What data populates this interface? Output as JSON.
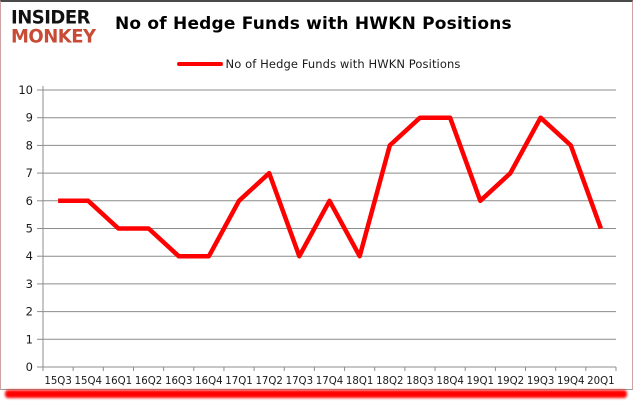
{
  "logo": {
    "line1": "INSIDER",
    "line2": "MONKEY",
    "line1_color": "#111111",
    "line2_color": "#c74b35"
  },
  "header": {
    "title": "No of Hedge Funds with HWKN Positions"
  },
  "legend": {
    "label": "No of Hedge Funds with HWKN Positions",
    "swatch_color": "#ff0000"
  },
  "chart_data": {
    "type": "line",
    "title": "No of Hedge Funds with HWKN Positions",
    "categories": [
      "15Q3",
      "15Q4",
      "16Q1",
      "16Q2",
      "16Q3",
      "16Q4",
      "17Q1",
      "17Q2",
      "17Q3",
      "17Q4",
      "18Q1",
      "18Q2",
      "18Q3",
      "18Q4",
      "19Q1",
      "19Q2",
      "19Q3",
      "19Q4",
      "20Q1"
    ],
    "series": [
      {
        "name": "No of Hedge Funds with HWKN Positions",
        "color": "#ff0000",
        "values": [
          6,
          6,
          5,
          5,
          4,
          4,
          6,
          7,
          4,
          6,
          4,
          8,
          9,
          9,
          6,
          7,
          9,
          8,
          5
        ]
      }
    ],
    "xlabel": "",
    "ylabel": "",
    "ylim": [
      0,
      10
    ],
    "ytick_step": 1,
    "yticks": [
      0,
      1,
      2,
      3,
      4,
      5,
      6,
      7,
      8,
      9,
      10
    ],
    "grid": true,
    "gridline_color": "#8c8c8c",
    "axis_color": "#8c8c8c",
    "tick_label_color": "#1a1a1a",
    "legend_position": "top-center"
  }
}
